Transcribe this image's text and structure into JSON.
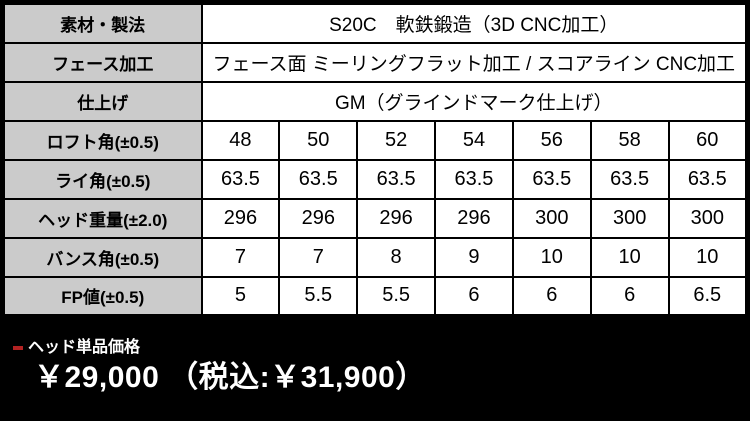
{
  "table": {
    "columns": 7,
    "spec_rows": [
      {
        "label": "素材・製法",
        "value": "S20C　軟鉄鍛造（3D CNC加工）"
      },
      {
        "label": "フェース加工",
        "value": "フェース面 ミーリングフラット加工 / スコアライン CNC加工"
      },
      {
        "label": "仕上げ",
        "value": "GM（グラインドマーク仕上げ）"
      }
    ],
    "data_rows": [
      {
        "label": "ロフト角(±0.5)",
        "values": [
          "48",
          "50",
          "52",
          "54",
          "56",
          "58",
          "60"
        ]
      },
      {
        "label": "ライ角(±0.5)",
        "values": [
          "63.5",
          "63.5",
          "63.5",
          "63.5",
          "63.5",
          "63.5",
          "63.5"
        ]
      },
      {
        "label": "ヘッド重量(±2.0)",
        "values": [
          "296",
          "296",
          "296",
          "296",
          "300",
          "300",
          "300"
        ]
      },
      {
        "label": "バンス角(±0.5)",
        "values": [
          "7",
          "7",
          "8",
          "9",
          "10",
          "10",
          "10"
        ]
      },
      {
        "label": "FP値(±0.5)",
        "values": [
          "5",
          "5.5",
          "5.5",
          "6",
          "6",
          "6",
          "6.5"
        ]
      }
    ]
  },
  "price": {
    "label": "ヘッド単品価格",
    "value": "￥29,000 （税込:￥31,900）"
  },
  "colors": {
    "page_background": "#000000",
    "header_cell_background": "#cbcbcb",
    "data_cell_background": "#ffffff",
    "border": "#000000",
    "table_text": "#000000",
    "price_text": "#ffffff",
    "accent_bullet_red": "#b22222"
  }
}
